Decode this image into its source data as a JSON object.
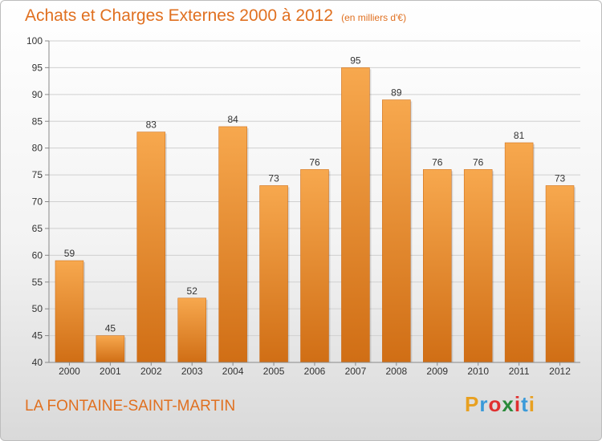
{
  "title": "Achats et Charges Externes 2000 à 2012",
  "subtitle": "(en milliers d'€)",
  "place": "LA FONTAINE-SAINT-MARTIN",
  "logo": {
    "text": "Proxiti",
    "colors": [
      "#e8a020",
      "#3a9ad9",
      "#e03030",
      "#2a8a3a",
      "#e03030",
      "#3a9ad9",
      "#e8a020"
    ]
  },
  "colors": {
    "bar_top": "#f7a84e",
    "bar_bottom": "#d06e15",
    "accent": "#e07020"
  },
  "chart_data": {
    "type": "bar",
    "title": "Achats et Charges Externes 2000 à 2012",
    "subtitle": "(en milliers d'€)",
    "categories": [
      "2000",
      "2001",
      "2002",
      "2003",
      "2004",
      "2005",
      "2006",
      "2007",
      "2008",
      "2009",
      "2010",
      "2011",
      "2012"
    ],
    "values": [
      59,
      45,
      83,
      52,
      84,
      73,
      76,
      95,
      89,
      76,
      76,
      81,
      73
    ],
    "ylim": [
      40,
      100
    ],
    "yticks": [
      40,
      45,
      50,
      55,
      60,
      65,
      70,
      75,
      80,
      85,
      90,
      95,
      100
    ],
    "grid": true
  }
}
